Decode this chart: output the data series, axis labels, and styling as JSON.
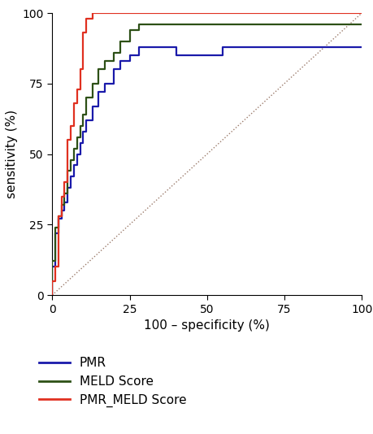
{
  "title": "",
  "xlabel": "100 – specificity (%)",
  "ylabel": "sensitivity (%)",
  "xlim": [
    0,
    100
  ],
  "ylim": [
    0,
    100
  ],
  "xticks": [
    0,
    25,
    50,
    75,
    100
  ],
  "yticks": [
    0,
    25,
    50,
    75,
    100
  ],
  "background_color": "#ffffff",
  "reference_line_color": "#9B7B6B",
  "reference_line_style": "dotted",
  "curves": {
    "PMR": {
      "color": "#1a1aaa",
      "linewidth": 1.6,
      "x": [
        0,
        0,
        1,
        1,
        2,
        2,
        3,
        3,
        4,
        4,
        5,
        5,
        6,
        6,
        7,
        7,
        8,
        8,
        9,
        9,
        10,
        10,
        11,
        11,
        13,
        13,
        15,
        15,
        17,
        17,
        20,
        20,
        22,
        22,
        25,
        25,
        28,
        28,
        40,
        40,
        55,
        55,
        100
      ],
      "y": [
        0,
        10,
        10,
        22,
        22,
        27,
        27,
        30,
        30,
        33,
        33,
        38,
        38,
        42,
        42,
        46,
        46,
        50,
        50,
        54,
        54,
        58,
        58,
        62,
        62,
        67,
        67,
        72,
        72,
        75,
        75,
        80,
        80,
        83,
        83,
        85,
        85,
        88,
        88,
        85,
        85,
        88,
        88
      ]
    },
    "MELD Score": {
      "color": "#2D5016",
      "linewidth": 1.6,
      "x": [
        0,
        0,
        1,
        1,
        2,
        2,
        3,
        3,
        4,
        4,
        5,
        5,
        6,
        6,
        7,
        7,
        8,
        8,
        9,
        9,
        10,
        10,
        11,
        11,
        13,
        13,
        15,
        15,
        17,
        17,
        20,
        20,
        22,
        22,
        25,
        25,
        28,
        28,
        100
      ],
      "y": [
        0,
        12,
        12,
        24,
        24,
        28,
        28,
        32,
        32,
        36,
        36,
        44,
        44,
        48,
        48,
        52,
        52,
        56,
        56,
        60,
        60,
        64,
        64,
        70,
        70,
        75,
        75,
        80,
        80,
        83,
        83,
        86,
        86,
        90,
        90,
        94,
        94,
        96,
        96
      ]
    },
    "PMR_MELD Score": {
      "color": "#E03020",
      "linewidth": 1.6,
      "x": [
        0,
        0,
        1,
        1,
        2,
        2,
        3,
        3,
        4,
        4,
        5,
        5,
        6,
        6,
        7,
        7,
        8,
        8,
        9,
        9,
        10,
        10,
        11,
        11,
        13,
        13,
        100
      ],
      "y": [
        0,
        5,
        5,
        10,
        10,
        28,
        28,
        35,
        35,
        40,
        40,
        55,
        55,
        60,
        60,
        68,
        68,
        73,
        73,
        80,
        80,
        93,
        93,
        98,
        98,
        100,
        100
      ]
    }
  },
  "legend_order": [
    "PMR",
    "MELD Score",
    "PMR_MELD Score"
  ],
  "legend_colors": {
    "PMR": "#1a1aaa",
    "MELD Score": "#2D5016",
    "PMR_MELD Score": "#E03020"
  },
  "legend_labels": {
    "PMR": "PMR",
    "MELD Score": "MELD Score",
    "PMR_MELD Score": "PMR_MELD Score"
  },
  "font_size": 11,
  "tick_font_size": 10
}
